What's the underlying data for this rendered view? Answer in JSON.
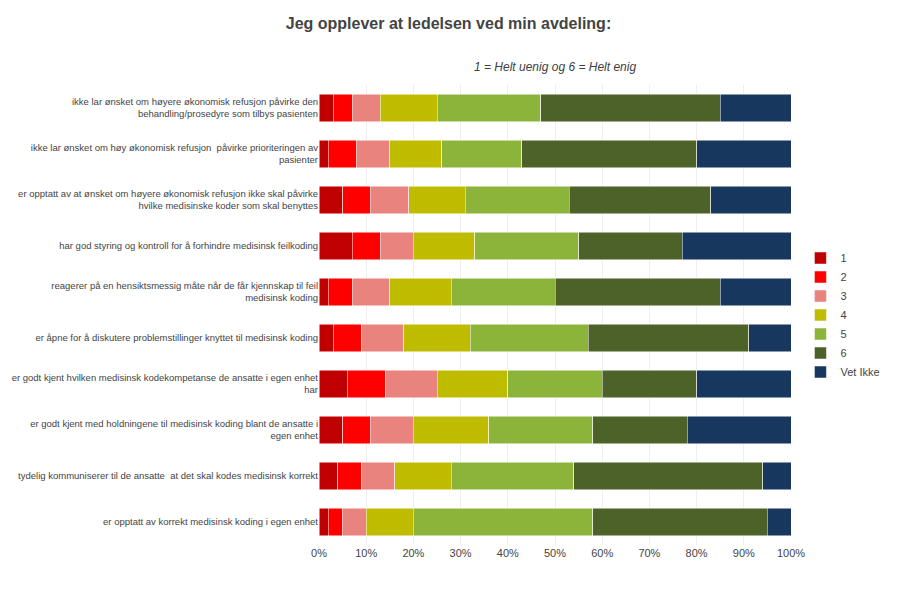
{
  "chart_data": {
    "type": "bar",
    "orientation": "horizontal",
    "stacked": true,
    "title": "Jeg opplever at ledelsen ved min avdeling:",
    "subtitle": "1 = Helt uenig og 6 = Helt enig",
    "categories": [
      "ikke lar ønsket om høyere økonomisk refusjon påvirke den\nbehandling/prosedyre som tilbys pasienten",
      "ikke lar ønsket om høy økonomisk refusjon  påvirke prioriteringen av\npasienter",
      "er opptatt av at ønsket om høyere økonomisk refusjon ikke skal påvirke\nhvilke medisinske koder som skal benyttes",
      "har god styring og kontroll for å forhindre medisinsk feilkoding",
      "reagerer på en hensiktsmessig måte når de får kjennskap til feil\nmedisinsk koding",
      "er åpne for å diskutere problemstillinger knyttet til medisinsk koding",
      "er godt kjent hvilken medisinsk kodekompetanse de ansatte i egen enhet\nhar",
      "er godt kjent med holdningene til medisinsk koding blant de ansatte i\negen enhet",
      "tydelig kommuniserer til de ansatte  at det skal kodes medisinsk korrekt",
      "er opptatt av korrekt medisinsk koding i egen enhet"
    ],
    "series": [
      {
        "name": "1",
        "color": "#c00000",
        "values": [
          3,
          2,
          5,
          7,
          2,
          3,
          6,
          5,
          4,
          2
        ]
      },
      {
        "name": "2",
        "color": "#ff0000",
        "values": [
          4,
          6,
          6,
          6,
          5,
          6,
          8,
          6,
          5,
          3
        ]
      },
      {
        "name": "3",
        "color": "#e8837e",
        "values": [
          6,
          7,
          8,
          7,
          8,
          9,
          11,
          9,
          7,
          5
        ]
      },
      {
        "name": "4",
        "color": "#bfbc00",
        "values": [
          12,
          11,
          12,
          13,
          13,
          14,
          15,
          16,
          12,
          10
        ]
      },
      {
        "name": "5",
        "color": "#8db43a",
        "values": [
          22,
          17,
          22,
          22,
          22,
          25,
          20,
          22,
          26,
          38
        ]
      },
      {
        "name": "6",
        "color": "#4d6228",
        "values": [
          38,
          37,
          30,
          22,
          35,
          34,
          20,
          20,
          40,
          37
        ]
      },
      {
        "name": "Vet Ikke",
        "color": "#17375e",
        "values": [
          15,
          20,
          17,
          23,
          15,
          9,
          20,
          22,
          6,
          5
        ]
      }
    ],
    "xlim": [
      0,
      100
    ],
    "xticks": [
      {
        "value": 0,
        "label": "0%"
      },
      {
        "value": 10,
        "label": "10%"
      },
      {
        "value": 20,
        "label": "20%"
      },
      {
        "value": 30,
        "label": "30%"
      },
      {
        "value": 40,
        "label": "40%"
      },
      {
        "value": 50,
        "label": "50%"
      },
      {
        "value": 60,
        "label": "60%"
      },
      {
        "value": 70,
        "label": "70%"
      },
      {
        "value": 80,
        "label": "80%"
      },
      {
        "value": 90,
        "label": "90%"
      },
      {
        "value": 100,
        "label": "100%"
      }
    ],
    "grid": true,
    "legend": "right"
  }
}
